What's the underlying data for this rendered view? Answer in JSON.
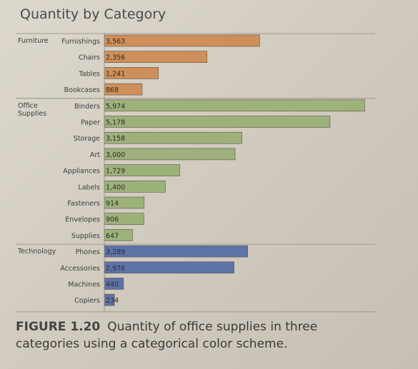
{
  "chart_data": {
    "type": "bar",
    "title": "Quantity by Category",
    "groups": [
      {
        "category": "Furniture",
        "color": "#cf8f5a",
        "items": [
          {
            "name": "Furnishings",
            "value": 3563
          },
          {
            "name": "Chairs",
            "value": 2356
          },
          {
            "name": "Tables",
            "value": 1241
          },
          {
            "name": "Bookcases",
            "value": 868
          }
        ]
      },
      {
        "category": "Office\nSupplies",
        "color": "#9db27a",
        "items": [
          {
            "name": "Binders",
            "value": 5974
          },
          {
            "name": "Paper",
            "value": 5178
          },
          {
            "name": "Storage",
            "value": 3158
          },
          {
            "name": "Art",
            "value": 3000
          },
          {
            "name": "Appliances",
            "value": 1729
          },
          {
            "name": "Labels",
            "value": 1400
          },
          {
            "name": "Fasteners",
            "value": 914
          },
          {
            "name": "Envelopes",
            "value": 906
          },
          {
            "name": "Supplies",
            "value": 647
          }
        ]
      },
      {
        "category": "Technology",
        "color": "#5e73a8",
        "items": [
          {
            "name": "Phones",
            "value": 3289
          },
          {
            "name": "Accessories",
            "value": 2976
          },
          {
            "name": "Machines",
            "value": 440
          },
          {
            "name": "Copiers",
            "value": 234
          }
        ]
      }
    ],
    "xlim": [
      0,
      6000
    ],
    "value_label_format": "thousands-comma",
    "grid": false,
    "legend": "none"
  },
  "caption": {
    "label": "FIGURE 1.20",
    "text": "Quantity of office supplies in three categories using a categorical color scheme."
  }
}
